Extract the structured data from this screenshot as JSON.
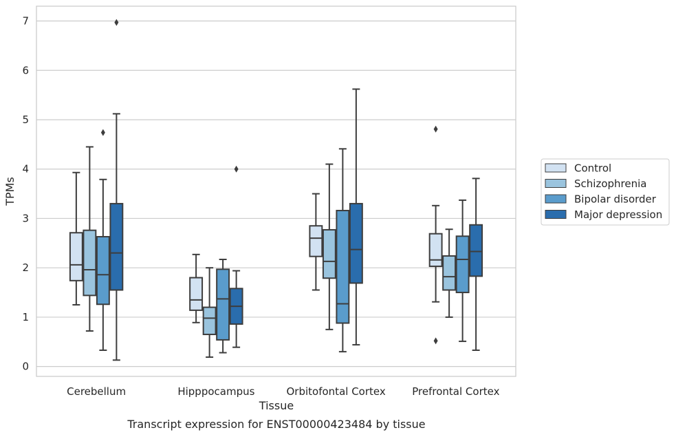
{
  "chart_data": {
    "type": "box",
    "title": "",
    "caption": "Transcript expression for ENST00000423484 by tissue",
    "xlabel": "Tissue",
    "ylabel": "TPMs",
    "ylim": [
      -0.2,
      7.3
    ],
    "yticks": [
      0,
      1,
      2,
      3,
      4,
      5,
      6,
      7
    ],
    "grid": "horizontal",
    "legend_position": "right",
    "categories": [
      "Cerebellum",
      "Hipppocampus",
      "Orbitofontal Cortex",
      "Prefrontal Cortex"
    ],
    "series": [
      {
        "name": "Control",
        "color": "#d2e2f2",
        "boxes": [
          {
            "whislo": 1.25,
            "q1": 1.74,
            "med": 2.06,
            "q3": 2.71,
            "whishi": 3.93,
            "fliers": []
          },
          {
            "whislo": 0.89,
            "q1": 1.14,
            "med": 1.35,
            "q3": 1.8,
            "whishi": 2.27,
            "fliers": []
          },
          {
            "whislo": 1.55,
            "q1": 2.23,
            "med": 2.6,
            "q3": 2.85,
            "whishi": 3.5,
            "fliers": []
          },
          {
            "whislo": 1.31,
            "q1": 2.03,
            "med": 2.16,
            "q3": 2.69,
            "whishi": 3.26,
            "fliers": [
              4.81,
              0.52
            ]
          }
        ]
      },
      {
        "name": "Schizophrenia",
        "color": "#9ac4de",
        "boxes": [
          {
            "whislo": 0.72,
            "q1": 1.44,
            "med": 1.96,
            "q3": 2.76,
            "whishi": 4.45,
            "fliers": []
          },
          {
            "whislo": 0.19,
            "q1": 0.65,
            "med": 0.98,
            "q3": 1.2,
            "whishi": 2.0,
            "fliers": []
          },
          {
            "whislo": 0.75,
            "q1": 1.79,
            "med": 2.13,
            "q3": 2.77,
            "whishi": 4.1,
            "fliers": []
          },
          {
            "whislo": 1.0,
            "q1": 1.55,
            "med": 1.82,
            "q3": 2.24,
            "whishi": 2.78,
            "fliers": []
          }
        ]
      },
      {
        "name": "Bipolar disorder",
        "color": "#5a9ccc",
        "boxes": [
          {
            "whislo": 0.33,
            "q1": 1.26,
            "med": 1.86,
            "q3": 2.63,
            "whishi": 3.79,
            "fliers": [
              4.74
            ]
          },
          {
            "whislo": 0.28,
            "q1": 0.54,
            "med": 1.37,
            "q3": 1.97,
            "whishi": 2.17,
            "fliers": []
          },
          {
            "whislo": 0.3,
            "q1": 0.88,
            "med": 1.27,
            "q3": 3.16,
            "whishi": 4.41,
            "fliers": []
          },
          {
            "whislo": 0.51,
            "q1": 1.5,
            "med": 2.17,
            "q3": 2.64,
            "whishi": 3.37,
            "fliers": []
          }
        ]
      },
      {
        "name": "Major depression",
        "color": "#2a6dad",
        "boxes": [
          {
            "whislo": 0.13,
            "q1": 1.55,
            "med": 2.3,
            "q3": 3.3,
            "whishi": 5.12,
            "fliers": [
              6.97
            ]
          },
          {
            "whislo": 0.39,
            "q1": 0.86,
            "med": 1.22,
            "q3": 1.58,
            "whishi": 1.94,
            "fliers": [
              4.0
            ]
          },
          {
            "whislo": 0.44,
            "q1": 1.69,
            "med": 2.37,
            "q3": 3.3,
            "whishi": 5.62,
            "fliers": []
          },
          {
            "whislo": 0.33,
            "q1": 1.83,
            "med": 2.33,
            "q3": 2.87,
            "whishi": 3.81,
            "fliers": []
          }
        ]
      }
    ]
  }
}
